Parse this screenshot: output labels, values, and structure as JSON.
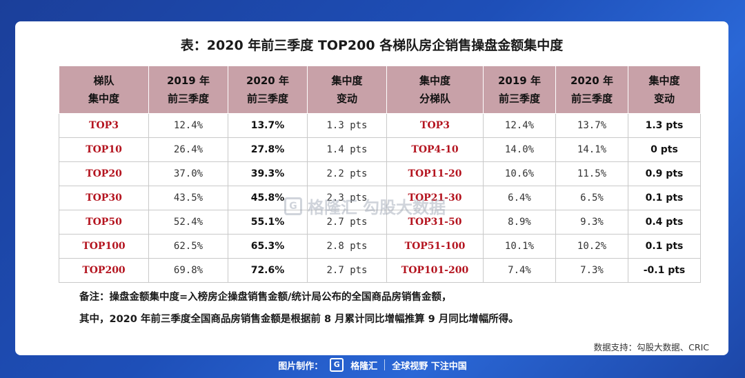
{
  "title": "表：2020 年前三季度 TOP200 各梯队房企销售操盘金额集中度",
  "headers": [
    "梯队\n集中度",
    "2019 年\n前三季度",
    "2020 年\n前三季度",
    "集中度\n变动",
    "集中度\n分梯队",
    "2019 年\n前三季度",
    "2020 年\n前三季度",
    "集中度\n变动"
  ],
  "rows": [
    [
      "TOP3",
      "12.4%",
      "13.7%",
      "1.3 pts",
      "TOP3",
      "12.4%",
      "13.7%",
      "1.3 pts"
    ],
    [
      "TOP10",
      "26.4%",
      "27.8%",
      "1.4 pts",
      "TOP4-10",
      "14.0%",
      "14.1%",
      "0 pts"
    ],
    [
      "TOP20",
      "37.0%",
      "39.3%",
      "2.2 pts",
      "TOP11-20",
      "10.6%",
      "11.5%",
      "0.9 pts"
    ],
    [
      "TOP30",
      "43.5%",
      "45.8%",
      "2.3 pts",
      "TOP21-30",
      "6.4%",
      "6.5%",
      "0.1 pts"
    ],
    [
      "TOP50",
      "52.4%",
      "55.1%",
      "2.7 pts",
      "TOP31-50",
      "8.9%",
      "9.3%",
      "0.4 pts"
    ],
    [
      "TOP100",
      "62.5%",
      "65.3%",
      "2.8 pts",
      "TOP51-100",
      "10.1%",
      "10.2%",
      "0.1 pts"
    ],
    [
      "TOP200",
      "69.8%",
      "72.6%",
      "2.7 pts",
      "TOP101-200",
      "7.4%",
      "7.3%",
      "-0.1 pts"
    ]
  ],
  "notes": [
    "备注：操盘金额集中度=入榜房企操盘销售金额/统计局公布的全国商品房销售金额，",
    "其中，2020 年前三季度全国商品房销售金额是根据前 8 月累计同比增幅推算 9 月同比增幅所得。"
  ],
  "source": "数据支持：勾股大数据、CRIC",
  "watermark": {
    "brand": "格隆汇",
    "sub": "勾股大数据",
    "logo_letter": "G"
  },
  "footer": {
    "label": "图片制作：",
    "logo_letter": "G",
    "brand": "格隆汇",
    "slogan": "全球视野 下注中国"
  }
}
